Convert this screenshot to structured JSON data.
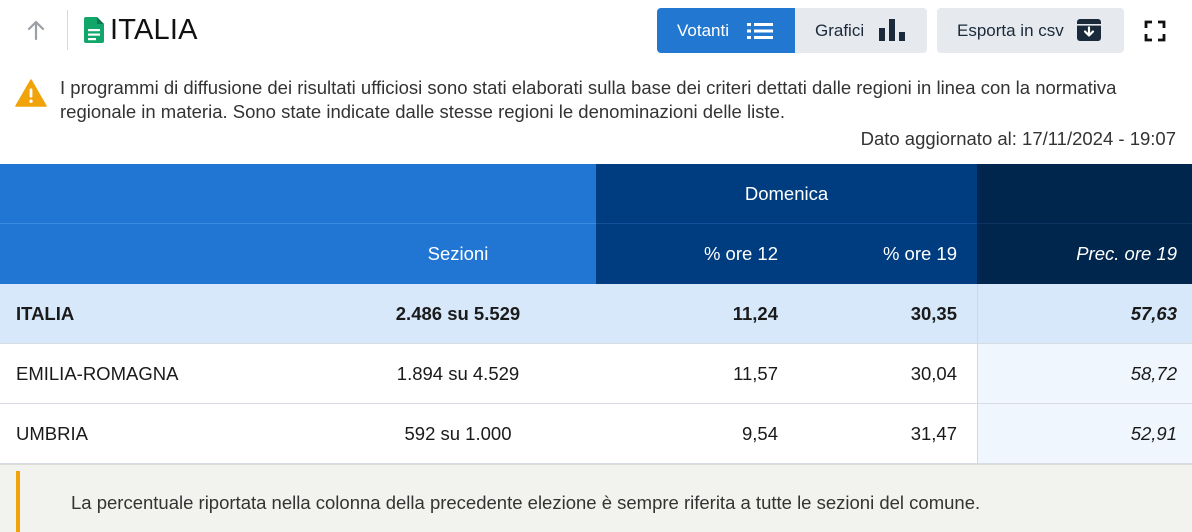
{
  "header": {
    "title": "ITALIA",
    "tabs": {
      "votanti": "Votanti",
      "grafici": "Grafici",
      "export": "Esporta in csv"
    },
    "icons": {
      "back": "arrow-up-icon",
      "title": "document-icon",
      "votanti": "list-icon",
      "grafici": "bar-chart-icon",
      "export": "archive-download-icon",
      "fullscreen": "fullscreen-icon"
    }
  },
  "notice": {
    "icon": "warning-icon",
    "text": "I programmi di diffusione dei risultati ufficiosi sono stati elaborati sulla base dei criteri dettati dalle regioni in linea con la normativa regionale in materia. Sono state indicate dalle stesse regioni le denominazioni delle liste.",
    "updated": "Dato aggiornato al: 17/11/2024 - 19:07"
  },
  "table": {
    "group_header": "Domenica",
    "columns": {
      "sezioni": "Sezioni",
      "ore12": "% ore 12",
      "ore19": "% ore 19",
      "prec": "Prec. ore 19"
    },
    "rows": [
      {
        "name": "ITALIA",
        "sezioni": "2.486 su 5.529",
        "ore12": "11,24",
        "ore19": "30,35",
        "prec": "57,63"
      },
      {
        "name": "EMILIA-ROMAGNA",
        "sezioni": "1.894 su 4.529",
        "ore12": "11,57",
        "ore19": "30,04",
        "prec": "58,72"
      },
      {
        "name": "UMBRIA",
        "sezioni": "592 su 1.000",
        "ore12": "9,54",
        "ore19": "31,47",
        "prec": "52,91"
      }
    ]
  },
  "footnote": {
    "text": "La percentuale riportata nella colonna della precedente elezione è sempre riferita a tutte le sezioni del comune."
  },
  "colors": {
    "accent": "#2176d4",
    "navy": "#003d80",
    "dark_navy": "#00264d",
    "highlight_row": "#d7e8fb",
    "warning": "#f0a30a",
    "doc_icon": "#12a66b"
  }
}
